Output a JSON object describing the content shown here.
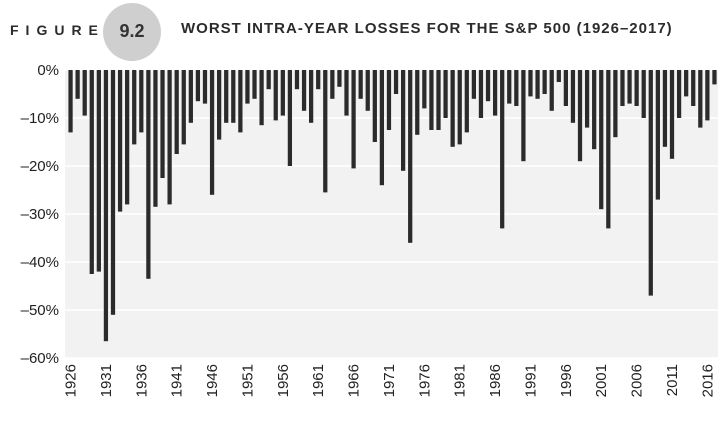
{
  "header": {
    "figure_word": "FIGURE",
    "figure_number": "9.2",
    "title": "WORST INTRA-YEAR LOSSES FOR THE S&P 500 (1926–2017)"
  },
  "colors": {
    "bar": "#2b2b2b",
    "plot_background": "#f2f2f2",
    "gridline": "#ffffff",
    "badge": "#cfcfcf"
  },
  "chart_data": {
    "type": "bar",
    "title": "WORST INTRA-YEAR LOSSES FOR THE S&P 500 (1926–2017)",
    "xlabel": "",
    "ylabel": "",
    "ylim": [
      -60,
      0
    ],
    "grid": true,
    "y_ticks": [
      "0%",
      "–10%",
      "–20%",
      "–30%",
      "–40%",
      "–50%",
      "–60%"
    ],
    "y_tick_values": [
      0,
      -10,
      -20,
      -30,
      -40,
      -50,
      -60
    ],
    "x_tick_labels": [
      "1926",
      "1931",
      "1936",
      "1941",
      "1946",
      "1951",
      "1956",
      "1961",
      "1966",
      "1971",
      "1976",
      "1981",
      "1986",
      "1991",
      "1996",
      "2001",
      "2006",
      "2011",
      "2016"
    ],
    "categories": [
      1926,
      1927,
      1928,
      1929,
      1930,
      1931,
      1932,
      1933,
      1934,
      1935,
      1936,
      1937,
      1938,
      1939,
      1940,
      1941,
      1942,
      1943,
      1944,
      1945,
      1946,
      1947,
      1948,
      1949,
      1950,
      1951,
      1952,
      1953,
      1954,
      1955,
      1956,
      1957,
      1958,
      1959,
      1960,
      1961,
      1962,
      1963,
      1964,
      1965,
      1966,
      1967,
      1968,
      1969,
      1970,
      1971,
      1972,
      1973,
      1974,
      1975,
      1976,
      1977,
      1978,
      1979,
      1980,
      1981,
      1982,
      1983,
      1984,
      1985,
      1986,
      1987,
      1988,
      1989,
      1990,
      1991,
      1992,
      1993,
      1994,
      1995,
      1996,
      1997,
      1998,
      1999,
      2000,
      2001,
      2002,
      2003,
      2004,
      2005,
      2006,
      2007,
      2008,
      2009,
      2010,
      2011,
      2012,
      2013,
      2014,
      2015,
      2016,
      2017
    ],
    "values": [
      -13,
      -6,
      -9.5,
      -42.5,
      -42,
      -56.5,
      -51,
      -29.5,
      -28,
      -15.5,
      -13,
      -43.5,
      -28.5,
      -22.5,
      -28,
      -17.5,
      -15.5,
      -11,
      -6.5,
      -7,
      -26,
      -14.5,
      -11,
      -11,
      -13,
      -7,
      -6,
      -11.5,
      -4,
      -10.5,
      -9.5,
      -20,
      -4,
      -8.5,
      -11,
      -4,
      -25.5,
      -6,
      -3.5,
      -9.5,
      -20.5,
      -6,
      -8.5,
      -15,
      -24,
      -12.5,
      -5,
      -21,
      -36,
      -13.5,
      -8,
      -12.5,
      -12.5,
      -10,
      -16,
      -15.5,
      -13,
      -6,
      -10,
      -6.5,
      -9.5,
      -33,
      -7,
      -7.5,
      -19,
      -5.5,
      -6,
      -5,
      -8.5,
      -2.5,
      -7.5,
      -11,
      -19,
      -12,
      -16.5,
      -29,
      -33,
      -14,
      -7.5,
      -7,
      -7.5,
      -10,
      -47,
      -27,
      -16,
      -18.5,
      -10,
      -5.5,
      -7.5,
      -12,
      -10.5,
      -3
    ]
  }
}
